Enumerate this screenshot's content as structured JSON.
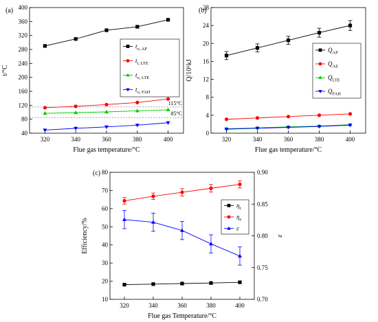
{
  "chart_data": [
    {
      "panel_label": "(a)",
      "type": "line",
      "xlabel": "Flue gas temperature/°C",
      "ylabel": "t/°C",
      "x": [
        320,
        340,
        360,
        380,
        400
      ],
      "xticks": [
        "320",
        "340",
        "360",
        "380",
        "400"
      ],
      "ylim": [
        40,
        400
      ],
      "yticks": [
        "40",
        "80",
        "120",
        "160",
        "200",
        "240",
        "280",
        "320",
        "360",
        "400"
      ],
      "legend_position": "right-middle",
      "series": [
        {
          "name": "to, AP",
          "color": "#000000",
          "marker": "square",
          "values": [
            290,
            310,
            335,
            345,
            365
          ]
        },
        {
          "name": "ti, LTE",
          "color": "#ff0000",
          "marker": "circle",
          "values": [
            113,
            117,
            122,
            128,
            138
          ]
        },
        {
          "name": "to, LTE",
          "color": "#00cc00",
          "marker": "triangle-up",
          "values": [
            97,
            99,
            101,
            104,
            107
          ]
        },
        {
          "name": "to, FAH",
          "color": "#0000ff",
          "marker": "triangle-down",
          "values": [
            49,
            54,
            58,
            63,
            70
          ]
        }
      ],
      "reference_lines": [
        {
          "y": 115,
          "label": "115°C"
        },
        {
          "y": 85,
          "label": "85°C"
        }
      ]
    },
    {
      "panel_label": "(b)",
      "type": "line",
      "xlabel": "Flue gas temperature/°C",
      "ylabel": "Q/10⁶kJ",
      "x": [
        320,
        340,
        360,
        380,
        400
      ],
      "xticks": [
        "320",
        "340",
        "360",
        "380",
        "400"
      ],
      "ylim": [
        0,
        28
      ],
      "yticks": [
        "0",
        "4",
        "8",
        "12",
        "16",
        "20",
        "24",
        "28"
      ],
      "legend_position": "right-middle",
      "series": [
        {
          "name": "QAP",
          "color": "#000000",
          "marker": "square",
          "values": [
            17.3,
            19.0,
            20.7,
            22.4,
            24.0
          ],
          "errors": [
            0.9,
            0.9,
            0.9,
            1.0,
            1.1
          ]
        },
        {
          "name": "QAE",
          "color": "#ff0000",
          "marker": "circle",
          "values": [
            3.1,
            3.4,
            3.7,
            4.0,
            4.3
          ]
        },
        {
          "name": "QLTE",
          "color": "#00cc00",
          "marker": "triangle-up",
          "values": [
            1.0,
            1.2,
            1.4,
            1.6,
            1.9
          ]
        },
        {
          "name": "QFAH",
          "color": "#0000ff",
          "marker": "triangle-down",
          "values": [
            0.9,
            1.1,
            1.3,
            1.5,
            1.8
          ]
        }
      ]
    },
    {
      "panel_label": "(c)",
      "type": "line",
      "xlabel": "Flue gas Temperature/°C",
      "ylabel": "Efficiency/%",
      "y2label": "ε",
      "x": [
        320,
        340,
        360,
        380,
        400
      ],
      "xticks": [
        "320",
        "340",
        "360",
        "380",
        "400"
      ],
      "ylim": [
        10,
        80
      ],
      "yticks": [
        "10",
        "20",
        "30",
        "40",
        "50",
        "60",
        "70",
        "80"
      ],
      "y2lim": [
        0.7,
        0.9
      ],
      "y2ticks": [
        "0.70",
        "0.75",
        "0.80",
        "0.85",
        "0.90"
      ],
      "legend_position": "right-middle",
      "series": [
        {
          "name": "ηt",
          "axis": "left",
          "color": "#000000",
          "marker": "square",
          "values": [
            18.1,
            18.4,
            18.7,
            19.0,
            19.4
          ]
        },
        {
          "name": "ηe",
          "axis": "left",
          "color": "#ff0000",
          "marker": "circle",
          "values": [
            64.3,
            66.8,
            69.0,
            71.2,
            73.4
          ],
          "errors": [
            1.8,
            1.8,
            2.0,
            2.1,
            2.0
          ]
        },
        {
          "name": "ε",
          "axis": "right",
          "color": "#0000ff",
          "marker": "triangle-up",
          "values": [
            0.8256,
            0.8214,
            0.8084,
            0.7874,
            0.7682
          ],
          "errors": [
            0.0143,
            0.0143,
            0.0143,
            0.0143,
            0.0143
          ]
        }
      ]
    }
  ],
  "legend_labels": {
    "a": [
      {
        "main": "t",
        "sub": "o, AP"
      },
      {
        "main": "t",
        "sub": "i, LTE"
      },
      {
        "main": "t",
        "sub": "o, LTE"
      },
      {
        "main": "t",
        "sub": "o, FAH"
      }
    ],
    "b": [
      {
        "main": "Q",
        "sub": "AP"
      },
      {
        "main": "Q",
        "sub": "AE"
      },
      {
        "main": "Q",
        "sub": "LTE"
      },
      {
        "main": "Q",
        "sub": "FAH"
      }
    ],
    "c": [
      {
        "main": "η",
        "sub": "t"
      },
      {
        "main": "η",
        "sub": "e"
      },
      {
        "main": "ε",
        "sub": ""
      }
    ]
  }
}
